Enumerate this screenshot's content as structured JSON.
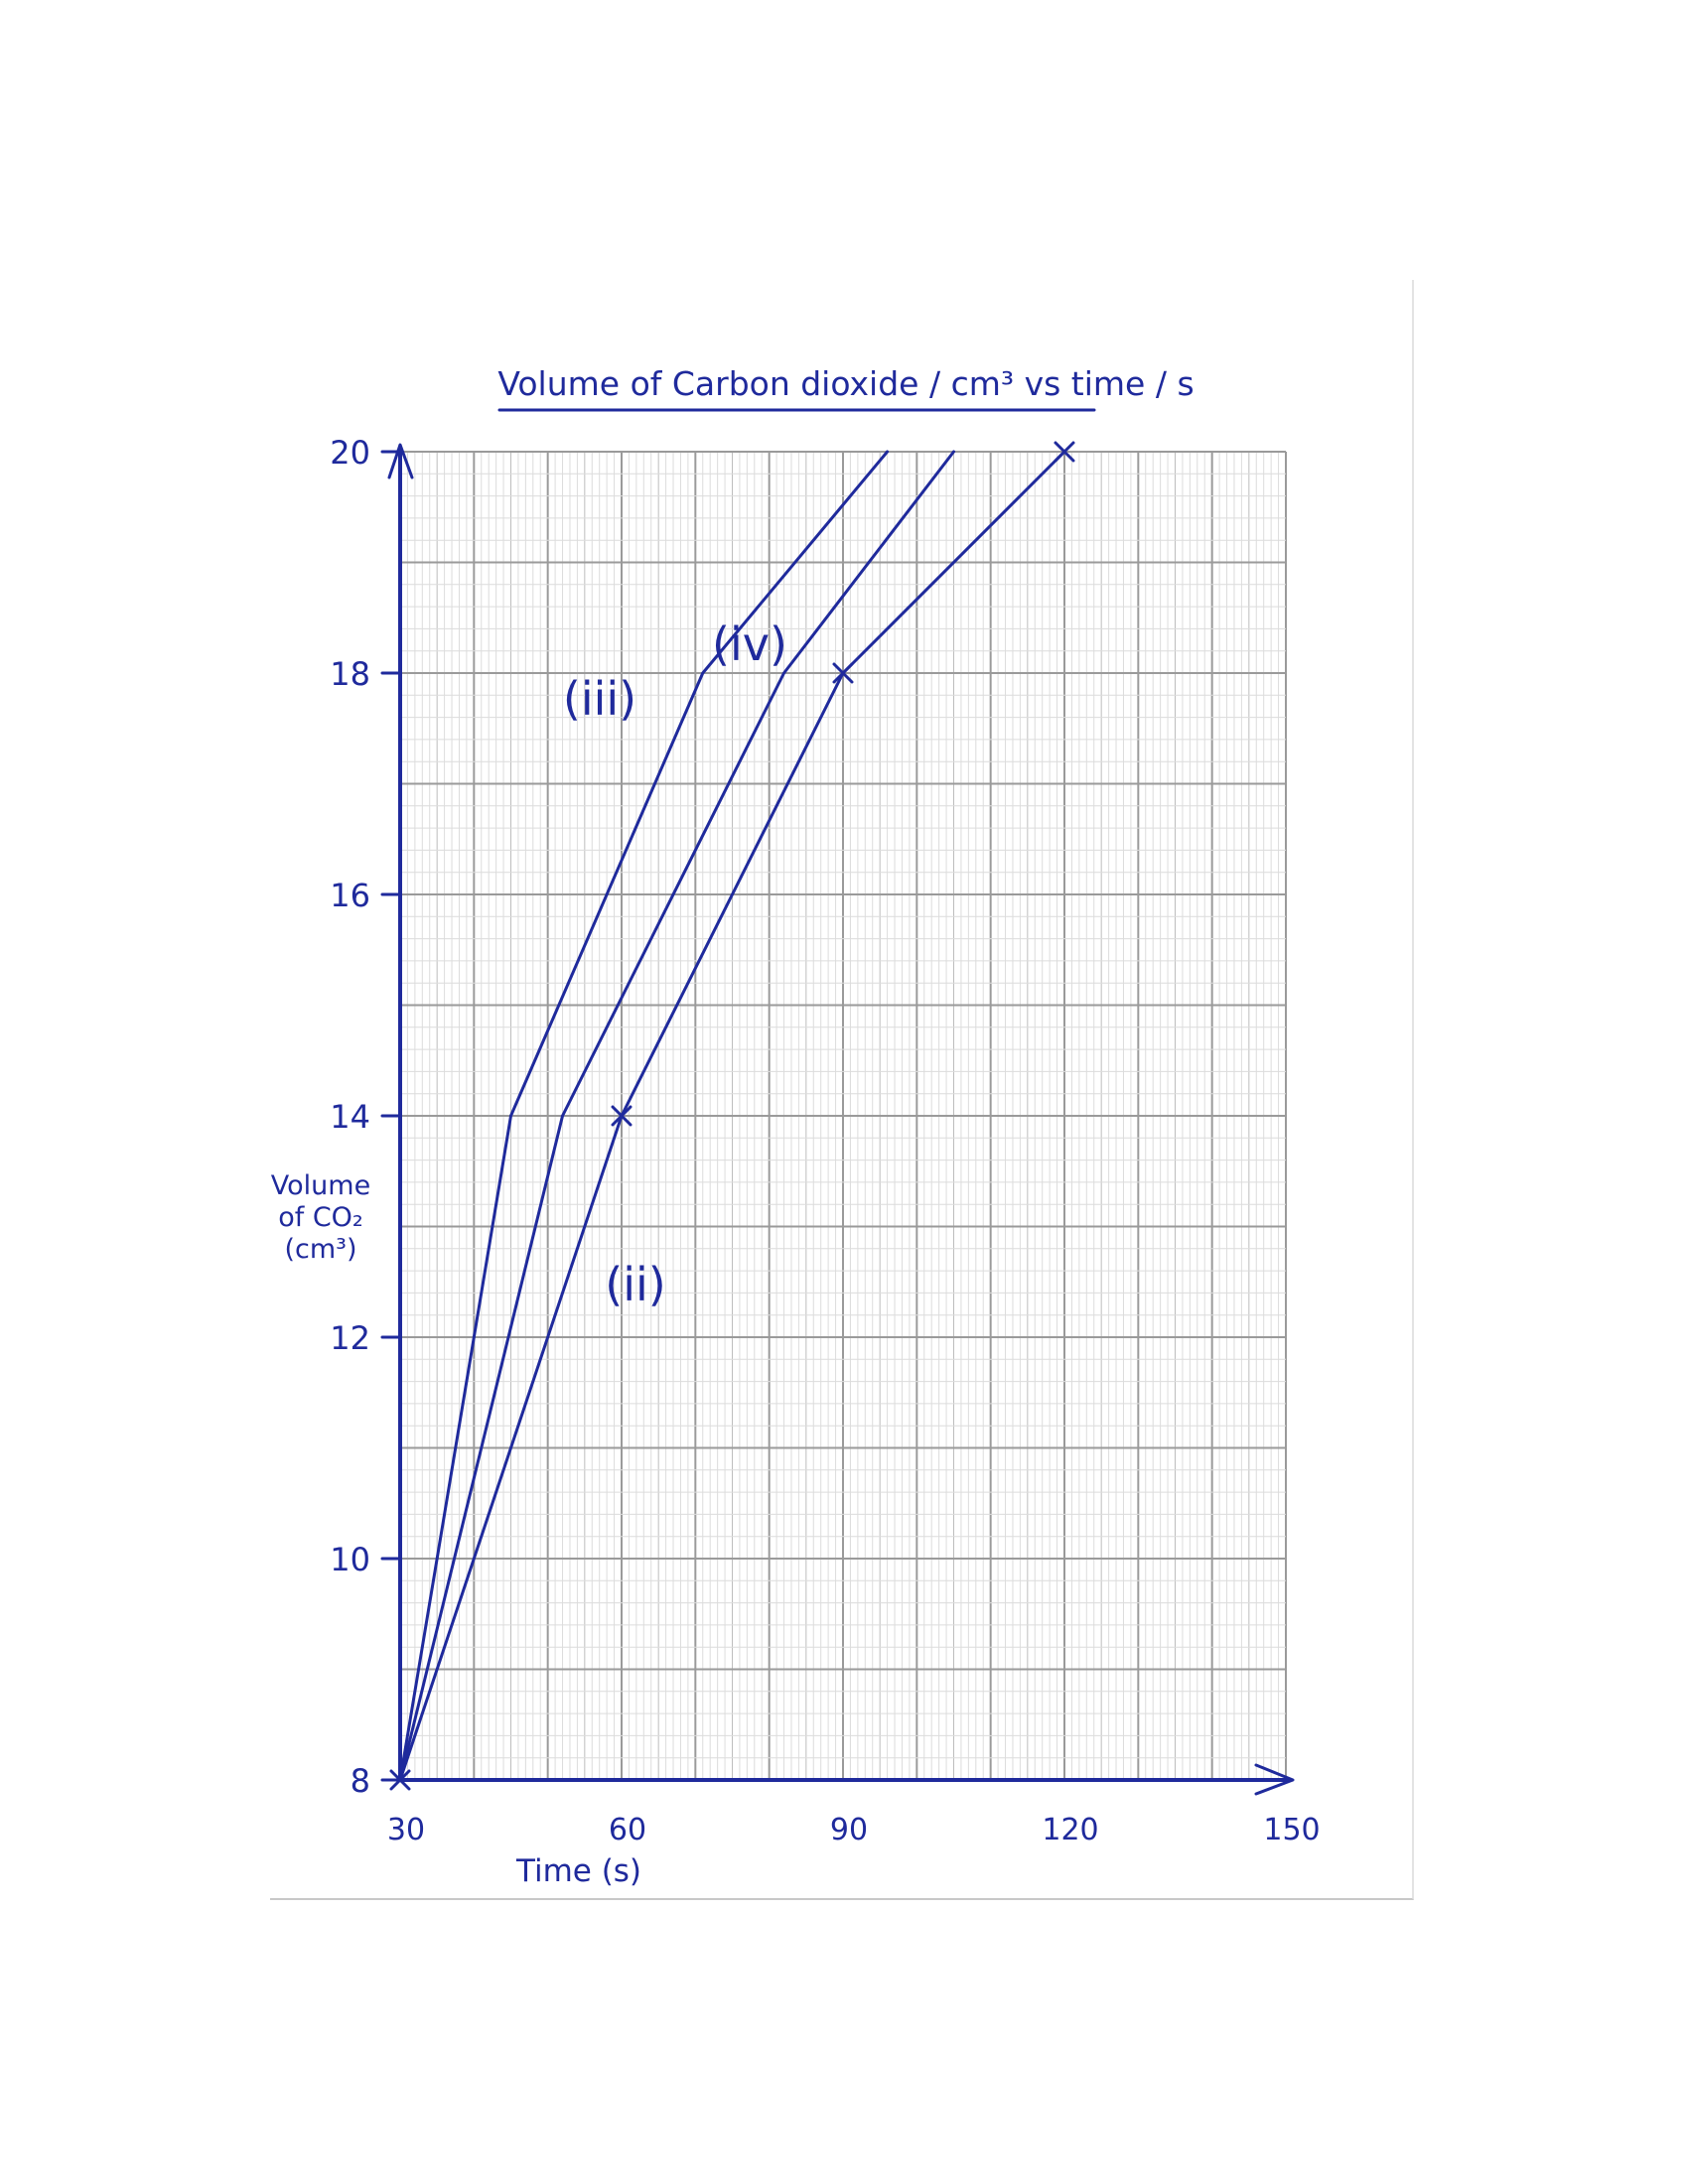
{
  "chart_data": {
    "type": "line",
    "title": "Volume of Carbon dioxide / cm³ vs time / s",
    "xlabel": "Time (s)",
    "ylabel_lines": [
      "Volume",
      "of CO₂",
      "(cm³)"
    ],
    "xlim": [
      30,
      150
    ],
    "ylim": [
      8,
      20
    ],
    "x_ticks": [
      30,
      60,
      90,
      120,
      150
    ],
    "x_tick_labels": [
      "30",
      "60",
      "90",
      "120",
      "150"
    ],
    "y_ticks": [
      8,
      10,
      12,
      14,
      16,
      18,
      20
    ],
    "y_tick_labels": [
      "8",
      "10",
      "12",
      "14",
      "16",
      "18",
      "20"
    ],
    "grid": true,
    "series": [
      {
        "name": "(ii)",
        "points": [
          [
            30,
            8
          ],
          [
            60,
            14
          ],
          [
            90,
            18
          ],
          [
            120,
            20
          ]
        ],
        "markers": true
      },
      {
        "name": "(iii)",
        "points": [
          [
            30,
            8
          ],
          [
            45,
            14
          ],
          [
            71,
            18
          ],
          [
            96,
            20
          ]
        ],
        "markers": false
      },
      {
        "name": "(iv)",
        "points": [
          [
            30,
            8
          ],
          [
            52,
            14
          ],
          [
            82,
            18
          ],
          [
            105,
            20
          ]
        ],
        "markers": false
      }
    ],
    "colors": {
      "ink": "#1f2a9c",
      "grid_major": "#9a9a9a",
      "grid_mid": "#bdbdbd",
      "grid_minor": "#dcdcdc"
    }
  }
}
